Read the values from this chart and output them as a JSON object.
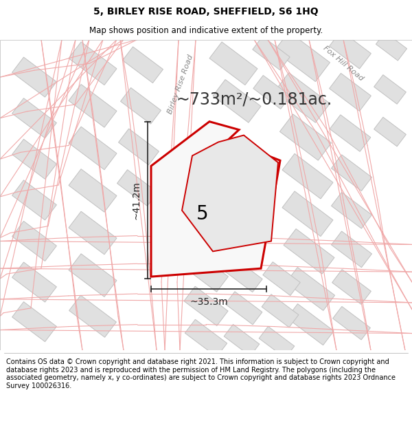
{
  "title": "5, BIRLEY RISE ROAD, SHEFFIELD, S6 1HQ",
  "subtitle": "Map shows position and indicative extent of the property.",
  "footer": "Contains OS data © Crown copyright and database right 2021. This information is subject to Crown copyright and database rights 2023 and is reproduced with the permission of HM Land Registry. The polygons (including the associated geometry, namely x, y co-ordinates) are subject to Crown copyright and database rights 2023 Ordnance Survey 100026316.",
  "area_label": "~733m²/~0.181ac.",
  "property_number": "5",
  "width_label": "~35.3m",
  "height_label": "~41.2m",
  "road1_label": "Birley Rise Road",
  "road2_label": "Fox Hill Road",
  "map_bg": "#ffffff",
  "building_fill": "#e0e0e0",
  "building_edge": "#c0c0c0",
  "road_line_color": "#f0a8a8",
  "highlight_stroke": "#cc0000",
  "highlight_fill": "#f8f8f8",
  "dim_color": "#222222",
  "title_fontsize": 10,
  "subtitle_fontsize": 8.5,
  "footer_fontsize": 7,
  "area_fontsize": 17,
  "number_fontsize": 20,
  "dim_fontsize": 10,
  "road_label_fontsize": 8
}
